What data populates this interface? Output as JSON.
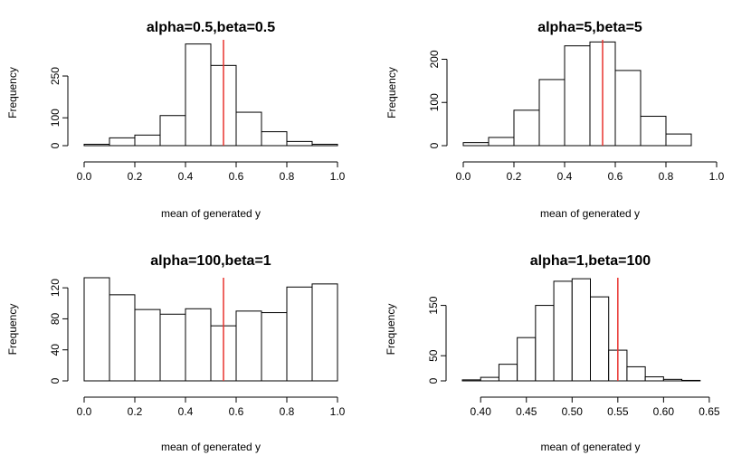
{
  "chart_data": [
    {
      "type": "bar",
      "title": "alpha=0.5,beta=0.5",
      "xlabel": "mean of generated y",
      "ylabel": "Frequency",
      "xlim": [
        0.0,
        1.0
      ],
      "ylim": [
        0,
        380
      ],
      "x_ticks": [
        "0.0",
        "0.2",
        "0.4",
        "0.6",
        "0.8",
        "1.0"
      ],
      "y_ticks": [
        "0",
        "100",
        "250"
      ],
      "bin_edges": [
        0.0,
        0.1,
        0.2,
        0.3,
        0.4,
        0.5,
        0.6,
        0.7,
        0.8,
        0.9,
        1.0
      ],
      "values": [
        5,
        28,
        38,
        108,
        365,
        288,
        120,
        50,
        15,
        5
      ],
      "vline": {
        "x": 0.55,
        "color": "#e8322e"
      }
    },
    {
      "type": "bar",
      "title": "alpha=5,beta=5",
      "xlabel": "mean of generated y",
      "ylabel": "Frequency",
      "xlim": [
        0.0,
        1.0
      ],
      "ylim": [
        0,
        245
      ],
      "x_ticks": [
        "0.0",
        "0.2",
        "0.4",
        "0.6",
        "0.8",
        "1.0"
      ],
      "y_ticks": [
        "0",
        "100",
        "200"
      ],
      "bin_edges": [
        0.0,
        0.1,
        0.2,
        0.3,
        0.4,
        0.5,
        0.6,
        0.7,
        0.8,
        0.9
      ],
      "values": [
        7,
        19,
        82,
        153,
        231,
        240,
        174,
        68,
        27
      ],
      "vline": {
        "x": 0.55,
        "color": "#e8322e"
      }
    },
    {
      "type": "bar",
      "title": "alpha=100,beta=1",
      "xlabel": "mean of generated y",
      "ylabel": "Frequency",
      "xlim": [
        0.0,
        1.0
      ],
      "ylim": [
        0,
        133
      ],
      "x_ticks": [
        "0.0",
        "0.2",
        "0.4",
        "0.6",
        "0.8",
        "1.0"
      ],
      "y_ticks": [
        "0",
        "40",
        "80",
        "120"
      ],
      "bin_edges": [
        0.0,
        0.1,
        0.2,
        0.3,
        0.4,
        0.5,
        0.6,
        0.7,
        0.8,
        0.9,
        1.0
      ],
      "values": [
        133,
        111,
        92,
        86,
        93,
        71,
        90,
        88,
        121,
        125
      ],
      "vline": {
        "x": 0.55,
        "color": "#e8322e"
      }
    },
    {
      "type": "bar",
      "title": "alpha=1,beta=100",
      "xlabel": "mean of generated y",
      "ylabel": "Frequency",
      "xlim": [
        0.38,
        0.66
      ],
      "ylim": [
        0,
        205
      ],
      "x_ticks": [
        "0.40",
        "0.45",
        "0.50",
        "0.55",
        "0.60",
        "0.65"
      ],
      "y_ticks": [
        "0",
        "50",
        "150"
      ],
      "bin_edges": [
        0.38,
        0.4,
        0.42,
        0.44,
        0.46,
        0.48,
        0.5,
        0.52,
        0.54,
        0.56,
        0.58,
        0.6,
        0.62,
        0.64
      ],
      "values": [
        2,
        7,
        33,
        86,
        150,
        198,
        203,
        167,
        61,
        28,
        8,
        3,
        1
      ],
      "vline": {
        "x": 0.55,
        "color": "#e8322e"
      }
    }
  ]
}
